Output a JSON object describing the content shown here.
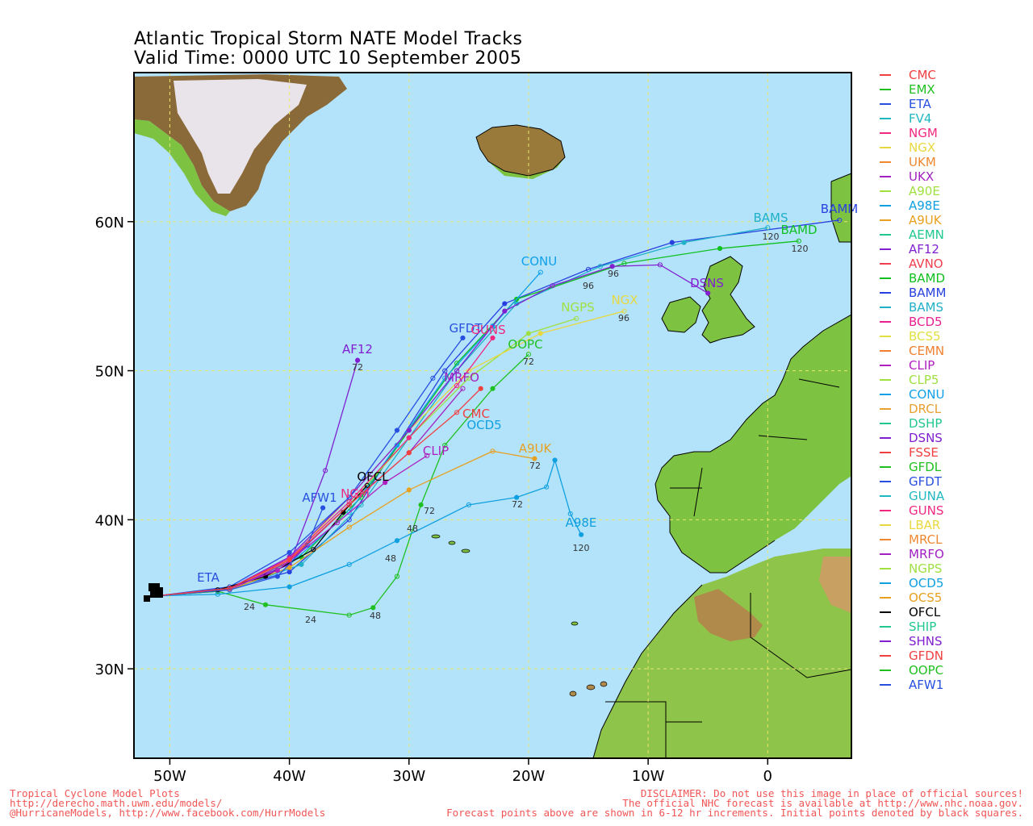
{
  "title": {
    "line1": "Atlantic Tropical Storm NATE Model Tracks",
    "line2": "Valid Time: 0000 UTC 10 September 2005"
  },
  "colors": {
    "ocean": "#b3e3fb",
    "land": "#7ec242",
    "land_dark": "#5a9a2a",
    "ice": "#e8e4ea",
    "grid": "#e8e86a"
  },
  "axes": {
    "lon_ticks": [
      {
        "lon": -50,
        "label": "50W"
      },
      {
        "lon": -40,
        "label": "40W"
      },
      {
        "lon": -30,
        "label": "30W"
      },
      {
        "lon": -20,
        "label": "20W"
      },
      {
        "lon": -10,
        "label": "10W"
      },
      {
        "lon": 0,
        "label": "0"
      }
    ],
    "lat_ticks": [
      {
        "lat": 60,
        "label": "60N"
      },
      {
        "lat": 50,
        "label": "50N"
      },
      {
        "lat": 40,
        "label": "40N"
      },
      {
        "lat": 30,
        "label": "30N"
      }
    ],
    "lon_range": [
      -53,
      7
    ],
    "lat_range": [
      24,
      70
    ]
  },
  "legend": [
    {
      "model": "CMC",
      "color": "#f04040"
    },
    {
      "model": "EMX",
      "color": "#20c020"
    },
    {
      "model": "ETA",
      "color": "#2850e0"
    },
    {
      "model": "FV4",
      "color": "#20b8c0"
    },
    {
      "model": "NGM",
      "color": "#f02880"
    },
    {
      "model": "NGX",
      "color": "#e8d840"
    },
    {
      "model": "UKM",
      "color": "#f08830"
    },
    {
      "model": "UKX",
      "color": "#a020c0"
    },
    {
      "model": "A90E",
      "color": "#a0e040"
    },
    {
      "model": "A98E",
      "color": "#10a0e0"
    },
    {
      "model": "A9UK",
      "color": "#e8a020"
    },
    {
      "model": "AEMN",
      "color": "#20c890"
    },
    {
      "model": "AF12",
      "color": "#8020d0"
    },
    {
      "model": "AVNO",
      "color": "#f04050"
    },
    {
      "model": "BAMD",
      "color": "#10c020"
    },
    {
      "model": "BAMM",
      "color": "#2840e0"
    },
    {
      "model": "BAMS",
      "color": "#20b0c8"
    },
    {
      "model": "BCD5",
      "color": "#e82090"
    },
    {
      "model": "BCS5",
      "color": "#e0e040"
    },
    {
      "model": "CEMN",
      "color": "#f08030"
    },
    {
      "model": "CLIP",
      "color": "#b020c0"
    },
    {
      "model": "CLP5",
      "color": "#a0e040"
    },
    {
      "model": "CONU",
      "color": "#10a0e8"
    },
    {
      "model": "DRCL",
      "color": "#e8a030"
    },
    {
      "model": "DSHP",
      "color": "#20c890"
    },
    {
      "model": "DSNS",
      "color": "#8020d0"
    },
    {
      "model": "FSSE",
      "color": "#f04040"
    },
    {
      "model": "GFDL",
      "color": "#20c020"
    },
    {
      "model": "GFDT",
      "color": "#2850e0"
    },
    {
      "model": "GUNA",
      "color": "#20b8c0"
    },
    {
      "model": "GUNS",
      "color": "#f02880"
    },
    {
      "model": "LBAR",
      "color": "#e8d840"
    },
    {
      "model": "MRCL",
      "color": "#f08830"
    },
    {
      "model": "MRFO",
      "color": "#a020c0"
    },
    {
      "model": "NGPS",
      "color": "#a0e040"
    },
    {
      "model": "OCD5",
      "color": "#10a0e0"
    },
    {
      "model": "OCS5",
      "color": "#e8a020"
    },
    {
      "model": "OFCL",
      "color": "#000000"
    },
    {
      "model": "SHIP",
      "color": "#20c890"
    },
    {
      "model": "SHNS",
      "color": "#8020d0"
    },
    {
      "model": "GFDN",
      "color": "#f04040"
    },
    {
      "model": "OOPC",
      "color": "#20c020"
    },
    {
      "model": "AFW1",
      "color": "#2850e0"
    }
  ],
  "track_labels": [
    {
      "text": "BAMM",
      "color": "#2840e0"
    },
    {
      "text": "BAMS",
      "color": "#20b0c8"
    },
    {
      "text": "BAMD",
      "color": "#10c020"
    },
    {
      "text": "CONU",
      "color": "#10a0e8"
    },
    {
      "text": "NGPS",
      "color": "#a0e040"
    },
    {
      "text": "NGX",
      "color": "#e8d840"
    },
    {
      "text": "DSNS",
      "color": "#8020d0"
    },
    {
      "text": "AF12",
      "color": "#8020d0"
    },
    {
      "text": "GFDT",
      "color": "#2850e0"
    },
    {
      "text": "GUNS",
      "color": "#f02880"
    },
    {
      "text": "MRFO",
      "color": "#a020c0"
    },
    {
      "text": "OOPC",
      "color": "#20c020"
    },
    {
      "text": "A9UK",
      "color": "#e8a020"
    },
    {
      "text": "A98E",
      "color": "#10a0e0"
    },
    {
      "text": "OFCL",
      "color": "#000000"
    },
    {
      "text": "AFW1",
      "color": "#2850e0"
    },
    {
      "text": "CLIP",
      "color": "#b020c0"
    },
    {
      "text": "ETA",
      "color": "#2850e0"
    },
    {
      "text": "OCD5",
      "color": "#10a0e0"
    },
    {
      "text": "CMC",
      "color": "#f04040"
    },
    {
      "text": "NGM",
      "color": "#f02880"
    }
  ],
  "hour_labels": [
    "120",
    "120",
    "120",
    "96",
    "96",
    "96",
    "72",
    "72",
    "72",
    "72",
    "72",
    "48",
    "48",
    "48",
    "24",
    "24"
  ],
  "tracks": [
    {
      "model": "BAMM",
      "color": "#2840e0",
      "pts": [
        [
          -51,
          34.9
        ],
        [
          -46,
          35.2
        ],
        [
          -40,
          36.5
        ],
        [
          -35,
          40
        ],
        [
          -31,
          45
        ],
        [
          -27,
          50
        ],
        [
          -22,
          54.5
        ],
        [
          -15,
          56.8
        ],
        [
          -8,
          58.6
        ],
        [
          6,
          60.1
        ]
      ]
    },
    {
      "model": "BAMS",
      "color": "#20b0c8",
      "pts": [
        [
          -51,
          34.9
        ],
        [
          -45,
          35.3
        ],
        [
          -39,
          37
        ],
        [
          -34,
          41
        ],
        [
          -30,
          45.5
        ],
        [
          -26,
          50
        ],
        [
          -21,
          54.5
        ],
        [
          -14,
          57
        ],
        [
          -7,
          58.6
        ],
        [
          0,
          59.6
        ]
      ]
    },
    {
      "model": "BAMD",
      "color": "#10c020",
      "pts": [
        [
          -51,
          34.9
        ],
        [
          -45,
          35.4
        ],
        [
          -39,
          37.5
        ],
        [
          -34,
          41.5
        ],
        [
          -30,
          46
        ],
        [
          -26,
          50.5
        ],
        [
          -21,
          54.8
        ],
        [
          -12,
          57.2
        ],
        [
          -4,
          58.2
        ],
        [
          2.6,
          58.7
        ]
      ]
    },
    {
      "model": "CONU",
      "color": "#10a0e8",
      "pts": [
        [
          -51,
          34.9
        ],
        [
          -45,
          35.4
        ],
        [
          -40,
          37
        ],
        [
          -35,
          40.5
        ],
        [
          -31,
          45
        ],
        [
          -27,
          49.5
        ],
        [
          -23,
          53
        ],
        [
          -19,
          56.6
        ]
      ]
    },
    {
      "model": "NGPS",
      "color": "#a0e040",
      "pts": [
        [
          -51,
          34.9
        ],
        [
          -45,
          35.3
        ],
        [
          -40,
          37.2
        ],
        [
          -35,
          41
        ],
        [
          -30,
          45.5
        ],
        [
          -25,
          49.5
        ],
        [
          -20,
          52.5
        ],
        [
          -16,
          53.5
        ]
      ]
    },
    {
      "model": "NGX",
      "color": "#e8d840",
      "pts": [
        [
          -51,
          34.9
        ],
        [
          -45,
          35.3
        ],
        [
          -40,
          37.3
        ],
        [
          -35,
          41.5
        ],
        [
          -30,
          46
        ],
        [
          -25,
          50
        ],
        [
          -19,
          52.5
        ],
        [
          -12,
          54
        ]
      ]
    },
    {
      "model": "DSNS",
      "color": "#8020d0",
      "pts": [
        [
          -51,
          34.9
        ],
        [
          -45,
          35.4
        ],
        [
          -40,
          37.5
        ],
        [
          -35,
          41.5
        ],
        [
          -30,
          46
        ],
        [
          -26,
          50
        ],
        [
          -22,
          54
        ],
        [
          -18,
          55.7
        ],
        [
          -13,
          57
        ],
        [
          -9,
          57.1
        ],
        [
          -5,
          55.2
        ]
      ]
    },
    {
      "model": "AF12",
      "color": "#8020d0",
      "pts": [
        [
          -51,
          34.9
        ],
        [
          -45,
          35.4
        ],
        [
          -40,
          37
        ],
        [
          -37,
          43.3
        ],
        [
          -34.3,
          50.7
        ]
      ]
    },
    {
      "model": "GFDT",
      "color": "#2850e0",
      "pts": [
        [
          -51,
          34.9
        ],
        [
          -45,
          35.5
        ],
        [
          -40,
          37.8
        ],
        [
          -35,
          41.5
        ],
        [
          -31,
          46
        ],
        [
          -28,
          49.5
        ],
        [
          -25.5,
          52.2
        ]
      ]
    },
    {
      "model": "GUNS",
      "color": "#f02880",
      "pts": [
        [
          -51,
          34.9
        ],
        [
          -45,
          35.4
        ],
        [
          -40,
          37.4
        ],
        [
          -35,
          41.2
        ],
        [
          -30,
          45.5
        ],
        [
          -26,
          49
        ],
        [
          -23,
          52.2
        ]
      ]
    },
    {
      "model": "MRFO",
      "color": "#a020c0",
      "pts": [
        [
          -51,
          34.9
        ],
        [
          -45,
          35.3
        ],
        [
          -40,
          37.2
        ],
        [
          -35,
          41
        ],
        [
          -30,
          44.5
        ],
        [
          -25.5,
          48.8
        ]
      ]
    },
    {
      "model": "OOPC",
      "color": "#20c020",
      "pts": [
        [
          -51,
          34.9
        ],
        [
          -46,
          35.2
        ],
        [
          -42,
          34.3
        ],
        [
          -35,
          33.6
        ],
        [
          -33,
          34.1
        ],
        [
          -31,
          36.2
        ],
        [
          -29,
          41
        ],
        [
          -27,
          45
        ],
        [
          -23,
          48.8
        ],
        [
          -20,
          51.1
        ]
      ]
    },
    {
      "model": "A9UK",
      "color": "#e8a020",
      "pts": [
        [
          -51,
          34.9
        ],
        [
          -45,
          35.3
        ],
        [
          -40,
          36.8
        ],
        [
          -35,
          39.5
        ],
        [
          -30,
          42
        ],
        [
          -23,
          44.6
        ],
        [
          -19.5,
          44.1
        ]
      ]
    },
    {
      "model": "A98E",
      "color": "#10a0e0",
      "pts": [
        [
          -51,
          34.9
        ],
        [
          -46,
          35
        ],
        [
          -40,
          35.5
        ],
        [
          -35,
          37
        ],
        [
          -31,
          38.6
        ],
        [
          -25,
          41
        ],
        [
          -21,
          41.5
        ],
        [
          -18.5,
          42.2
        ],
        [
          -17.8,
          44
        ],
        [
          -16.5,
          40.4
        ],
        [
          -15.6,
          39
        ]
      ]
    },
    {
      "model": "OFCL",
      "color": "#000000",
      "pts": [
        [
          -51,
          34.9
        ],
        [
          -46,
          35.3
        ],
        [
          -42,
          36.2
        ],
        [
          -38,
          38
        ],
        [
          -35.5,
          40.5
        ],
        [
          -33.5,
          42.3
        ]
      ]
    },
    {
      "model": "AFW1",
      "color": "#2850e0",
      "pts": [
        [
          -51,
          34.9
        ],
        [
          -45,
          35.3
        ],
        [
          -41,
          36.2
        ],
        [
          -38.5,
          38.3
        ],
        [
          -37.2,
          40.8
        ]
      ]
    },
    {
      "model": "CLIP",
      "color": "#b020c0",
      "pts": [
        [
          -51,
          34.9
        ],
        [
          -45,
          35.4
        ],
        [
          -41,
          36.6
        ],
        [
          -36,
          39.8
        ],
        [
          -32,
          42.5
        ],
        [
          -28.5,
          44.3
        ]
      ]
    },
    {
      "model": "CMC",
      "color": "#f04040",
      "pts": [
        [
          -51,
          34.9
        ],
        [
          -45,
          35.4
        ],
        [
          -40,
          37.3
        ],
        [
          -35,
          41
        ],
        [
          -30,
          44.5
        ],
        [
          -26,
          47.2
        ],
        [
          -24,
          48.8
        ]
      ]
    }
  ],
  "footer": {
    "left1": "Tropical Cyclone Model Plots",
    "left2": "http://derecho.math.uwm.edu/models/",
    "left3": "@HurricaneModels, http://www.facebook.com/HurrModels",
    "right1": "DISCLAIMER: Do not use this image in place of official sources!",
    "right2": "The official NHC forecast is available at http://www.nhc.noaa.gov.",
    "right3": "Forecast points above are shown in 6-12 hr increments. Initial points denoted by black squares."
  }
}
